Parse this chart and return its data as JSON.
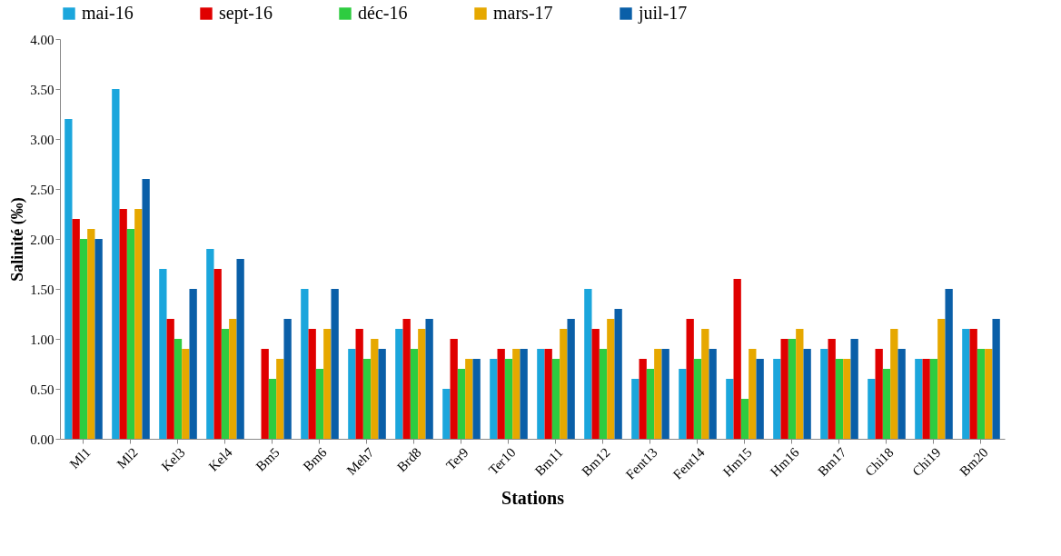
{
  "chart_data": {
    "type": "bar",
    "xlabel": "Stations",
    "ylabel": "Salinité (‰)",
    "categories": [
      "Ml1",
      "Ml2",
      "Kel3",
      "Kel4",
      "Bm5",
      "Bm6",
      "Meh7",
      "Brd8",
      "Ter9",
      "Ter10",
      "Bm11",
      "Bm12",
      "Fent13",
      "Fent14",
      "Hm15",
      "Hm16",
      "Bm17",
      "Chi18",
      "Chi19",
      "Bm20"
    ],
    "series": [
      {
        "name": "mai-16",
        "color": "#1ba6dc",
        "values": [
          3.2,
          3.5,
          1.7,
          1.9,
          null,
          1.5,
          0.9,
          1.1,
          0.5,
          0.8,
          0.9,
          1.5,
          0.6,
          0.7,
          0.6,
          0.8,
          0.9,
          0.6,
          0.8,
          1.1
        ]
      },
      {
        "name": "sept-16",
        "color": "#e00000",
        "values": [
          2.2,
          2.3,
          1.2,
          1.7,
          0.9,
          1.1,
          1.1,
          1.2,
          1.0,
          0.9,
          0.9,
          1.1,
          0.8,
          1.2,
          1.6,
          1.0,
          1.0,
          0.9,
          0.8,
          1.1
        ]
      },
      {
        "name": "déc-16",
        "color": "#2ecc40",
        "values": [
          2.0,
          2.1,
          1.0,
          1.1,
          0.6,
          0.7,
          0.8,
          0.9,
          0.7,
          0.8,
          0.8,
          0.9,
          0.7,
          0.8,
          0.4,
          1.0,
          0.8,
          0.7,
          0.8,
          0.9
        ]
      },
      {
        "name": "mars-17",
        "color": "#e6a800",
        "values": [
          2.1,
          2.3,
          0.9,
          1.2,
          0.8,
          1.1,
          1.0,
          1.1,
          0.8,
          0.9,
          1.1,
          1.2,
          0.9,
          1.1,
          0.9,
          1.1,
          0.8,
          1.1,
          1.2,
          0.9
        ]
      },
      {
        "name": "juil-17",
        "color": "#0a5fa8",
        "values": [
          2.0,
          2.6,
          1.5,
          1.8,
          1.2,
          1.5,
          0.9,
          1.2,
          0.8,
          0.9,
          1.2,
          1.3,
          0.9,
          0.9,
          0.8,
          0.9,
          1.0,
          0.9,
          1.5,
          1.2
        ]
      }
    ],
    "ylim": [
      0,
      4
    ],
    "yticks": [
      {
        "value": 0,
        "label": "0.00"
      },
      {
        "value": 0.5,
        "label": "0.50"
      },
      {
        "value": 1,
        "label": "1.00"
      },
      {
        "value": 1.5,
        "label": "1.50"
      },
      {
        "value": 2,
        "label": "2.00"
      },
      {
        "value": 2.5,
        "label": "2.50"
      },
      {
        "value": 3,
        "label": "3.00"
      },
      {
        "value": 3.5,
        "label": "3.50"
      },
      {
        "value": 4,
        "label": "4.00"
      }
    ],
    "grid": false,
    "legend": "top"
  }
}
